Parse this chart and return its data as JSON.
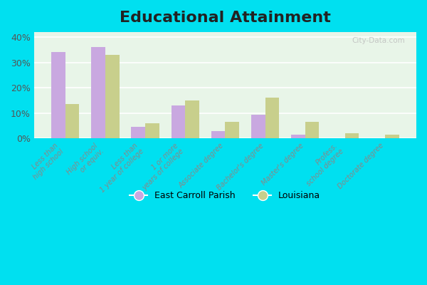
{
  "title": "Educational Attainment",
  "title_fontsize": 16,
  "title_fontweight": "bold",
  "categories": [
    "Less than\nhigh school",
    "High school\nor equiv.",
    "Less than\n1 year of college",
    "1 or more\nyears of college",
    "Associate degree",
    "Bachelor's degree",
    "Master's degree",
    "Profess.\nschool degree",
    "Doctorate degree"
  ],
  "east_carroll_vals": [
    34.0,
    36.0,
    4.5,
    13.0,
    3.0,
    9.5,
    1.5,
    0.2,
    0.2
  ],
  "louisiana_vals": [
    13.5,
    33.0,
    6.0,
    15.0,
    6.5,
    16.0,
    6.5,
    2.0,
    1.5
  ],
  "east_carroll_color": "#c9a8e0",
  "louisiana_color": "#c8cf8c",
  "legend_ec": "East Carroll Parish",
  "legend_la": "Louisiana",
  "ylim": [
    0,
    42
  ],
  "yticks": [
    0,
    10,
    20,
    30,
    40
  ],
  "ytick_labels": [
    "0%",
    "10%",
    "20%",
    "30%",
    "40%"
  ],
  "watermark": "City-Data.com",
  "outer_bg": "#00e0f0",
  "plot_bg": "#e8f5e8"
}
